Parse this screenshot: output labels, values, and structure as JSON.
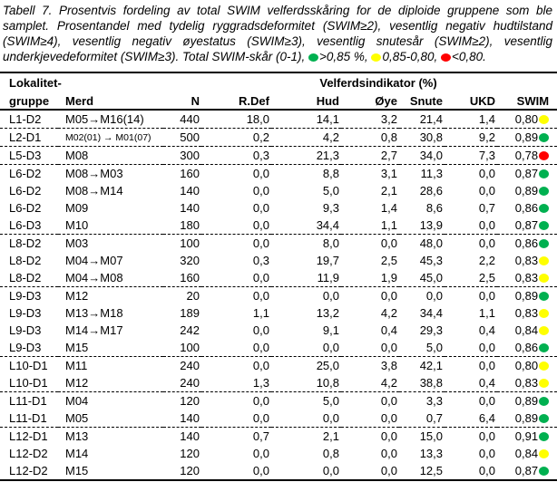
{
  "colors": {
    "green": "#00B050",
    "yellow": "#FFFF00",
    "red": "#FF0000",
    "border": "#000000"
  },
  "caption": {
    "intro": "Tabell 7. Prosentvis fordeling av total SWIM velferdsskåring for de diploide gruppene som ble samplet. Prosentandel med tydelig ryggradsdeformitet (SWIM≥2), vesentlig negativ hudtilstand (SWIM≥4), vesentlig negativ øyestatus (SWIM≥3), vesentlig snutesår (SWIM≥2), vesentlig underkjevedeformitet (SWIM≥3). Total SWIM-skår (0-1),",
    "legend": [
      {
        "dot": "green",
        "label": ">0,85 %,"
      },
      {
        "dot": "yellow",
        "label": "0,85-0,80,"
      },
      {
        "dot": "red",
        "label": "<0,80."
      }
    ]
  },
  "table": {
    "header_row1": {
      "col1": "Lokalitet-",
      "span": "Velferdsindikator (%)"
    },
    "header_row2": [
      "gruppe",
      "Merd",
      "N",
      "R.Def",
      "Hud",
      "Øye",
      "Snute",
      "UKD",
      "SWIM"
    ],
    "rows": [
      {
        "group": "L1-D2",
        "merd": "M05→M16(14)",
        "small": false,
        "n": "440",
        "rdef": "18,0",
        "hud": "14,1",
        "oye": "3,2",
        "snute": "21,4",
        "ukd": "1,4",
        "swim": "0,80",
        "dot": "yellow",
        "group_end": true
      },
      {
        "group": "L2-D1",
        "merd": "M02(01) → M01(07)",
        "small": true,
        "n": "500",
        "rdef": "0,2",
        "hud": "4,2",
        "oye": "0,8",
        "snute": "30,8",
        "ukd": "9,2",
        "swim": "0,89",
        "dot": "green",
        "group_end": true
      },
      {
        "group": "L5-D3",
        "merd": "M08",
        "small": false,
        "n": "300",
        "rdef": "0,3",
        "hud": "21,3",
        "oye": "2,7",
        "snute": "34,0",
        "ukd": "7,3",
        "swim": "0,78",
        "dot": "red",
        "group_end": true
      },
      {
        "group": "L6-D2",
        "merd": "M08→M03",
        "small": false,
        "n": "160",
        "rdef": "0,0",
        "hud": "8,8",
        "oye": "3,1",
        "snute": "11,3",
        "ukd": "0,0",
        "swim": "0,87",
        "dot": "green",
        "group_end": false
      },
      {
        "group": "L6-D2",
        "merd": "M08→M14",
        "small": false,
        "n": "140",
        "rdef": "0,0",
        "hud": "5,0",
        "oye": "2,1",
        "snute": "28,6",
        "ukd": "0,0",
        "swim": "0,89",
        "dot": "green",
        "group_end": false
      },
      {
        "group": "L6-D2",
        "merd": "M09",
        "small": false,
        "n": "140",
        "rdef": "0,0",
        "hud": "9,3",
        "oye": "1,4",
        "snute": "8,6",
        "ukd": "0,7",
        "swim": "0,86",
        "dot": "green",
        "group_end": false
      },
      {
        "group": "L6-D3",
        "merd": "M10",
        "small": false,
        "n": "180",
        "rdef": "0,0",
        "hud": "34,4",
        "oye": "1,1",
        "snute": "13,9",
        "ukd": "0,0",
        "swim": "0,87",
        "dot": "green",
        "group_end": true
      },
      {
        "group": "L8-D2",
        "merd": "M03",
        "small": false,
        "n": "100",
        "rdef": "0,0",
        "hud": "8,0",
        "oye": "0,0",
        "snute": "48,0",
        "ukd": "0,0",
        "swim": "0,86",
        "dot": "green",
        "group_end": false
      },
      {
        "group": "L8-D2",
        "merd": "M04→M07",
        "small": false,
        "n": "320",
        "rdef": "0,3",
        "hud": "19,7",
        "oye": "2,5",
        "snute": "45,3",
        "ukd": "2,2",
        "swim": "0,83",
        "dot": "yellow",
        "group_end": false
      },
      {
        "group": "L8-D2",
        "merd": "M04→M08",
        "small": false,
        "n": "160",
        "rdef": "0,0",
        "hud": "11,9",
        "oye": "1,9",
        "snute": "45,0",
        "ukd": "2,5",
        "swim": "0,83",
        "dot": "yellow",
        "group_end": true
      },
      {
        "group": "L9-D3",
        "merd": "M12",
        "small": false,
        "n": "20",
        "rdef": "0,0",
        "hud": "0,0",
        "oye": "0,0",
        "snute": "0,0",
        "ukd": "0,0",
        "swim": "0,89",
        "dot": "green",
        "group_end": false
      },
      {
        "group": "L9-D3",
        "merd": "M13→M18",
        "small": false,
        "n": "189",
        "rdef": "1,1",
        "hud": "13,2",
        "oye": "4,2",
        "snute": "34,4",
        "ukd": "1,1",
        "swim": "0,83",
        "dot": "yellow",
        "group_end": false
      },
      {
        "group": "L9-D3",
        "merd": "M14→M17",
        "small": false,
        "n": "242",
        "rdef": "0,0",
        "hud": "9,1",
        "oye": "0,4",
        "snute": "29,3",
        "ukd": "0,4",
        "swim": "0,84",
        "dot": "yellow",
        "group_end": false
      },
      {
        "group": "L9-D3",
        "merd": "M15",
        "small": false,
        "n": "100",
        "rdef": "0,0",
        "hud": "0,0",
        "oye": "0,0",
        "snute": "5,0",
        "ukd": "0,0",
        "swim": "0,86",
        "dot": "green",
        "group_end": true
      },
      {
        "group": "L10-D1",
        "merd": "M11",
        "small": false,
        "n": "240",
        "rdef": "0,0",
        "hud": "25,0",
        "oye": "3,8",
        "snute": "42,1",
        "ukd": "0,0",
        "swim": "0,80",
        "dot": "yellow",
        "group_end": false
      },
      {
        "group": "L10-D1",
        "merd": "M12",
        "small": false,
        "n": "240",
        "rdef": "1,3",
        "hud": "10,8",
        "oye": "4,2",
        "snute": "38,8",
        "ukd": "0,4",
        "swim": "0,83",
        "dot": "yellow",
        "group_end": true
      },
      {
        "group": "L11-D1",
        "merd": "M04",
        "small": false,
        "n": "120",
        "rdef": "0,0",
        "hud": "5,0",
        "oye": "0,0",
        "snute": "3,3",
        "ukd": "0,0",
        "swim": "0,89",
        "dot": "green",
        "group_end": false
      },
      {
        "group": "L11-D1",
        "merd": "M05",
        "small": false,
        "n": "140",
        "rdef": "0,0",
        "hud": "0,0",
        "oye": "0,0",
        "snute": "0,7",
        "ukd": "6,4",
        "swim": "0,89",
        "dot": "green",
        "group_end": true
      },
      {
        "group": "L12-D1",
        "merd": "M13",
        "small": false,
        "n": "140",
        "rdef": "0,7",
        "hud": "2,1",
        "oye": "0,0",
        "snute": "15,0",
        "ukd": "0,0",
        "swim": "0,91",
        "dot": "green",
        "group_end": false
      },
      {
        "group": "L12-D2",
        "merd": "M14",
        "small": false,
        "n": "120",
        "rdef": "0,0",
        "hud": "0,8",
        "oye": "0,0",
        "snute": "13,3",
        "ukd": "0,0",
        "swim": "0,84",
        "dot": "yellow",
        "group_end": false
      },
      {
        "group": "L12-D2",
        "merd": "M15",
        "small": false,
        "n": "120",
        "rdef": "0,0",
        "hud": "0,0",
        "oye": "0,0",
        "snute": "12,5",
        "ukd": "0,0",
        "swim": "0,87",
        "dot": "green",
        "group_end": false
      }
    ]
  }
}
